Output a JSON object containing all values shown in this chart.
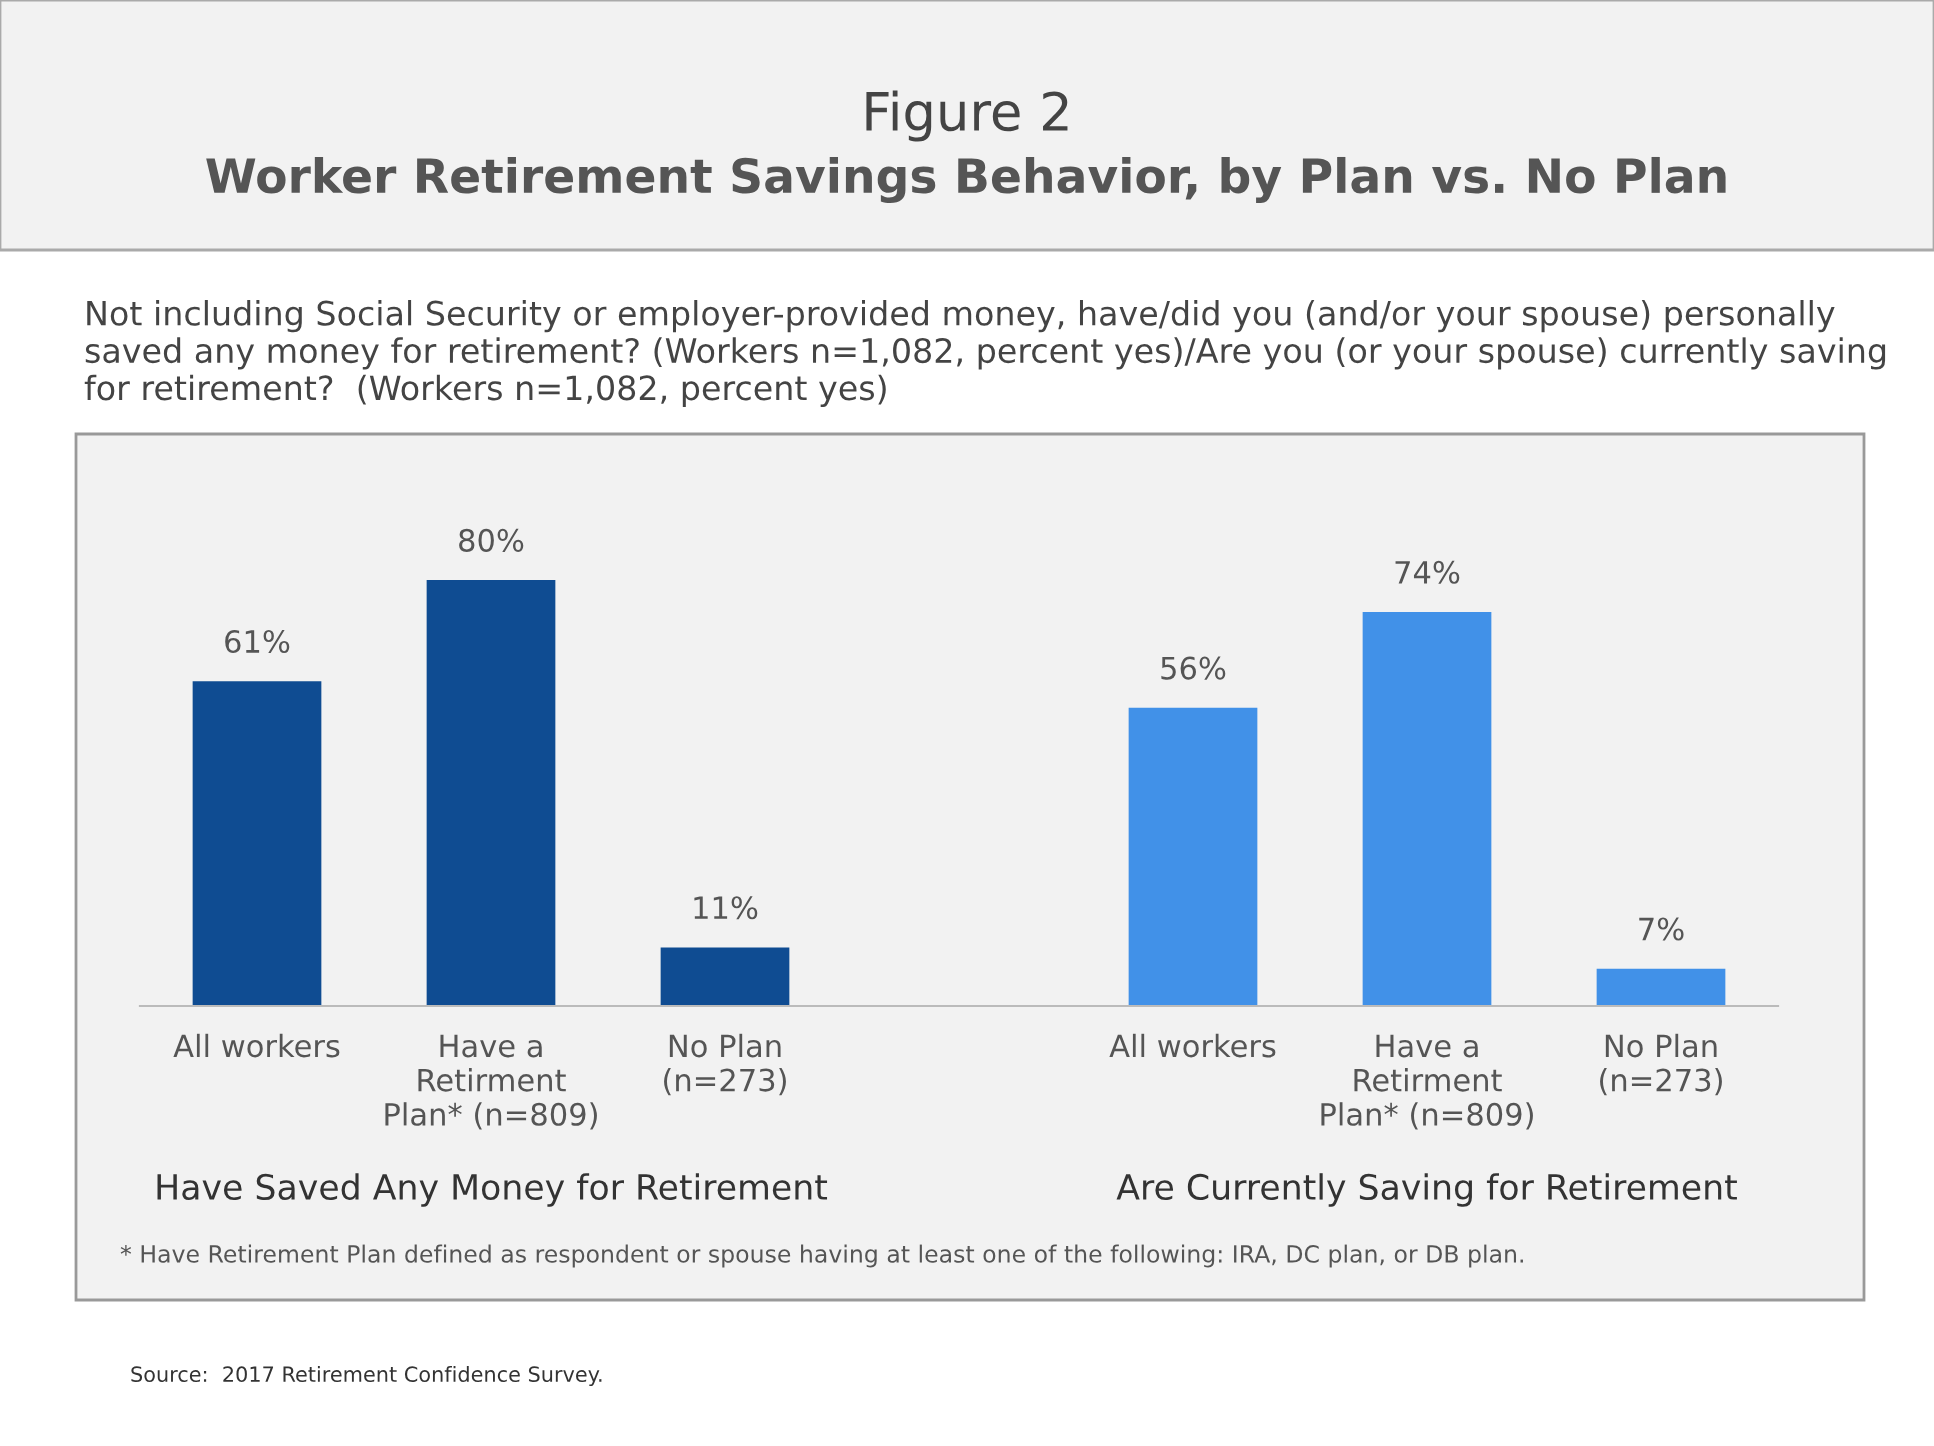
{
  "chart_data": {
    "type": "bar",
    "title": "Figure 2",
    "subtitle": "Worker Retirement Savings Behavior, by Plan vs. No Plan",
    "categories": [
      "All workers",
      "Have a\nRetirment\nPlan* (n=809)",
      "No Plan\n(n=273)",
      null,
      "All workers",
      "Have a\nRetirment\nPlan* (n=809)",
      "No Plan\n(n=273)"
    ],
    "values": [
      61,
      80,
      11,
      null,
      56,
      74,
      7
    ],
    "colors": [
      "#0f4c92",
      "#0f4c92",
      "#0f4c92",
      "#0f4c92",
      "#4191e8",
      "#4191e8",
      "#4191e8"
    ],
    "value_labels": [
      "61%",
      "80%",
      "11%",
      null,
      "56%",
      "74%",
      "7%"
    ],
    "annotations": [
      "Not including Social Security or employer-provided money, have/did you (and/or your spouse) personally saved any money for retirement? (Workers n=1,082, percent yes)/Are you (or your spouse) currently saving for retirement?  (Workers n=1,082, percent yes)",
      "Have Saved Any Money for Retirement",
      "Are Currently Saving for Retirement",
      "* Have Retirement Plan defined as respondent or spouse having at least one of the following: IRA, DC plan, or DB plan.",
      "Source:  2017 Retirement Confidence Survey."
    ]
  }
}
